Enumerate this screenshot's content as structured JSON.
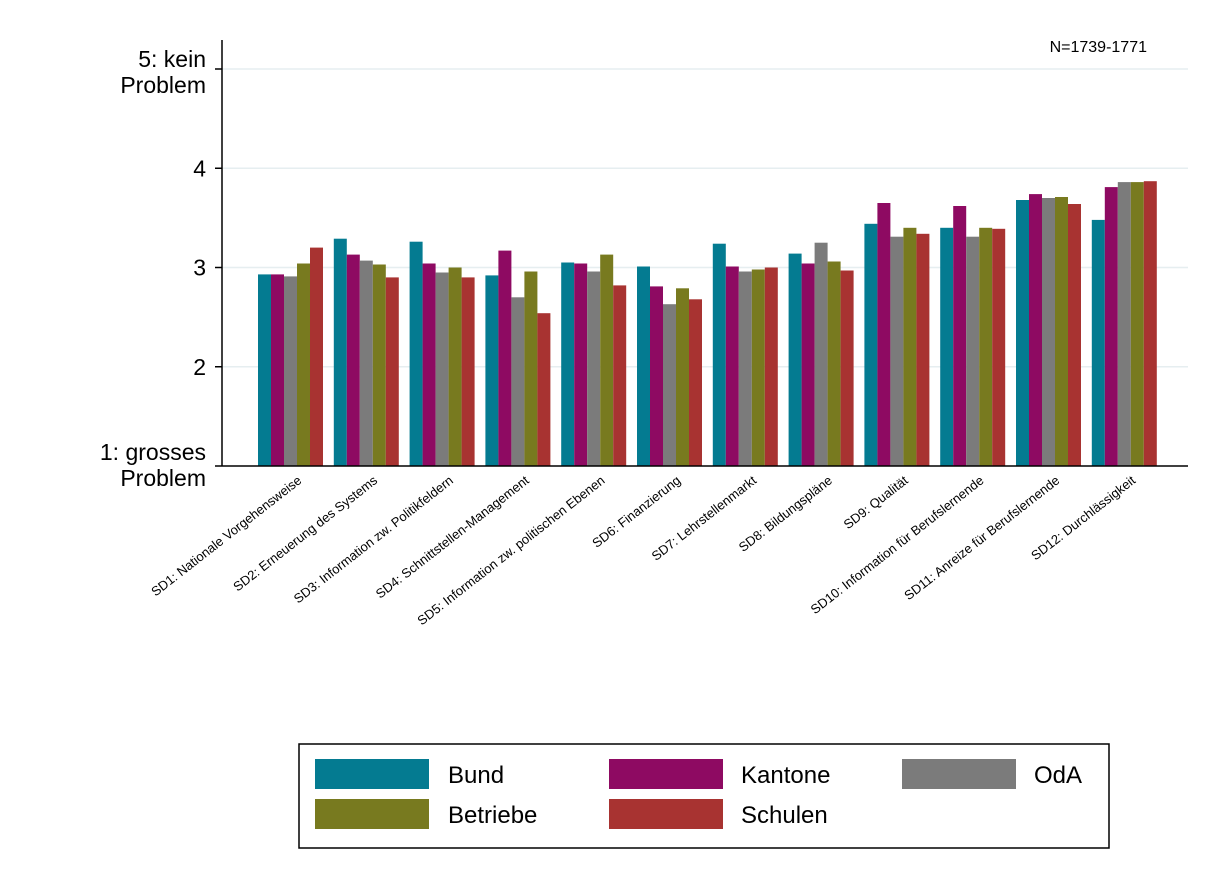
{
  "chart_data": {
    "type": "bar",
    "title": "",
    "annotation": "N=1739-1771",
    "xlabel": "",
    "ylabel": "",
    "ylim": [
      1,
      5
    ],
    "y_ticks": [
      {
        "value": 5,
        "lines": [
          "5: kein",
          "Problem"
        ]
      },
      {
        "value": 4,
        "lines": [
          "4"
        ]
      },
      {
        "value": 3,
        "lines": [
          "3"
        ]
      },
      {
        "value": 2,
        "lines": [
          "2"
        ]
      },
      {
        "value": 1,
        "lines": [
          "1: grosses",
          "Problem"
        ]
      }
    ],
    "grid": true,
    "legend_position": "bottom",
    "categories": [
      "SD1: Nationale Vorgehensweise",
      "SD2: Erneuerung des Systems",
      "SD3: Information zw. Politikfeldern",
      "SD4: Schnittstellen-Management",
      "SD5: Information zw. politischen Ebenen",
      "SD6: Finanzierung",
      "SD7: Lehrstellenmarkt",
      "SD8: Bildungspläne",
      "SD9: Qualität",
      "SD10: Information für Berufslernende",
      "SD11: Anreize für Berufslernende",
      "SD12: Durchlässigkeit"
    ],
    "series": [
      {
        "name": "Bund",
        "color": "#047b91",
        "values": [
          2.93,
          3.29,
          3.26,
          2.92,
          3.05,
          3.01,
          3.24,
          3.14,
          3.44,
          3.4,
          3.68,
          3.48
        ]
      },
      {
        "name": "Kantone",
        "color": "#8e0a62",
        "values": [
          2.93,
          3.13,
          3.04,
          3.17,
          3.04,
          2.81,
          3.01,
          3.04,
          3.65,
          3.62,
          3.74,
          3.81
        ]
      },
      {
        "name": "OdA",
        "color": "#7b7b7b",
        "values": [
          2.91,
          3.07,
          2.95,
          2.7,
          2.96,
          2.63,
          2.96,
          3.25,
          3.31,
          3.31,
          3.7,
          3.86
        ]
      },
      {
        "name": "Betriebe",
        "color": "#787a1f",
        "values": [
          3.04,
          3.03,
          3.0,
          2.96,
          3.13,
          2.79,
          2.98,
          3.06,
          3.4,
          3.4,
          3.71,
          3.86
        ]
      },
      {
        "name": "Schulen",
        "color": "#a83331",
        "values": [
          3.2,
          2.9,
          2.9,
          2.54,
          2.82,
          2.68,
          3.0,
          2.97,
          3.34,
          3.39,
          3.64,
          3.87
        ]
      }
    ]
  }
}
